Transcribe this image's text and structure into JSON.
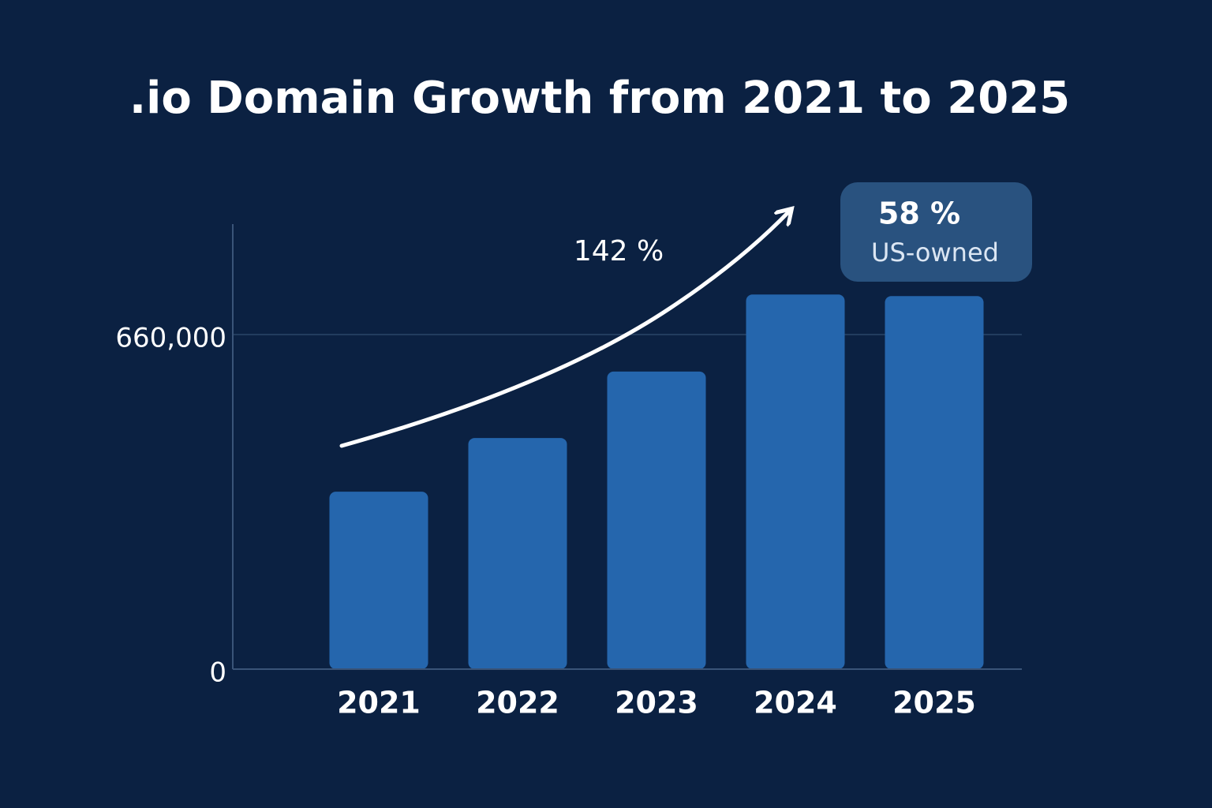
{
  "chart_data": {
    "type": "bar",
    "title": ".io Domain Growth from 2021 to 2025",
    "categories": [
      "2021",
      "2022",
      "2023",
      "2024",
      "2025"
    ],
    "values": [
      350000,
      456000,
      587000,
      739000,
      736000
    ],
    "color": "#2566ad",
    "ylim": [
      0,
      878000
    ],
    "yticks": [
      0,
      {
        "value": 660000,
        "label": "660,000"
      }
    ],
    "grid": true,
    "annotations": [
      "142 %",
      "58 %",
      "US-owned"
    ]
  }
}
